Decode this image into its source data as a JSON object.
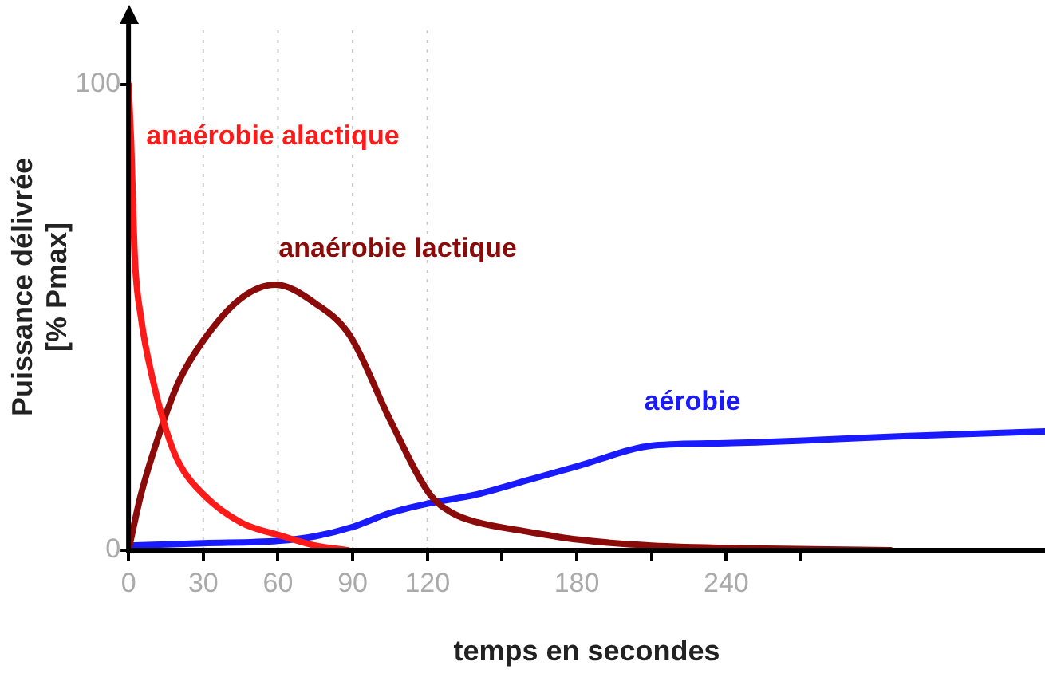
{
  "chart_data": {
    "type": "line",
    "xlabel": "temps en secondes",
    "ylabel": "Puissance délivrée\n[% Pmax]",
    "xlim": [
      0,
      368
    ],
    "xticks": [
      0,
      30,
      60,
      90,
      120,
      {
        "value": 150,
        "label": null
      },
      180,
      {
        "value": 210,
        "label": null
      },
      240,
      {
        "value": 270,
        "label": null
      }
    ],
    "ylim": [
      0,
      113
    ],
    "yticks": [
      0,
      100
    ],
    "grid": false,
    "legend": false,
    "marker": "none",
    "line_style": "solid",
    "ref_lines": [
      {
        "axis": "x",
        "value": 30,
        "label": null,
        "color": "#c8c8c8",
        "line_style": "dotted"
      },
      {
        "axis": "x",
        "value": 60,
        "label": null,
        "color": "#c8c8c8",
        "line_style": "dotted"
      },
      {
        "axis": "x",
        "value": 90,
        "label": null,
        "color": "#c8c8c8",
        "line_style": "dotted"
      },
      {
        "axis": "x",
        "value": 120,
        "label": null,
        "color": "#c8c8c8",
        "line_style": "dotted"
      }
    ],
    "series": [
      {
        "name": "anaérobie alactique",
        "color": "#ff1a1a",
        "x": [
          0,
          1,
          2.5,
          5,
          10,
          15,
          20,
          30,
          45,
          62,
          75,
          88
        ],
        "values": [
          100,
          88,
          63,
          50,
          36,
          26,
          19,
          12,
          6,
          3,
          1,
          0
        ]
      },
      {
        "name": "anaérobie lactique",
        "color": "#8b0a0a",
        "x": [
          0,
          5,
          13,
          20,
          30,
          45,
          59,
          75,
          89,
          105,
          121,
          130,
          140,
          160,
          180,
          210,
          250,
          306
        ],
        "values": [
          0,
          12,
          26,
          36,
          45,
          54,
          57,
          53,
          46,
          28,
          12,
          8,
          6,
          4,
          2.3,
          1,
          0.4,
          0
        ]
      },
      {
        "name": "aérobie",
        "color": "#1a1aff",
        "x": [
          0,
          30,
          60,
          75,
          90,
          105,
          120,
          140,
          160,
          180,
          211,
          240,
          269,
          311,
          368
        ],
        "values": [
          1,
          1.5,
          2,
          3,
          5,
          8,
          10,
          12,
          15,
          18,
          22.5,
          23,
          23.5,
          24.5,
          25.5
        ]
      }
    ]
  }
}
